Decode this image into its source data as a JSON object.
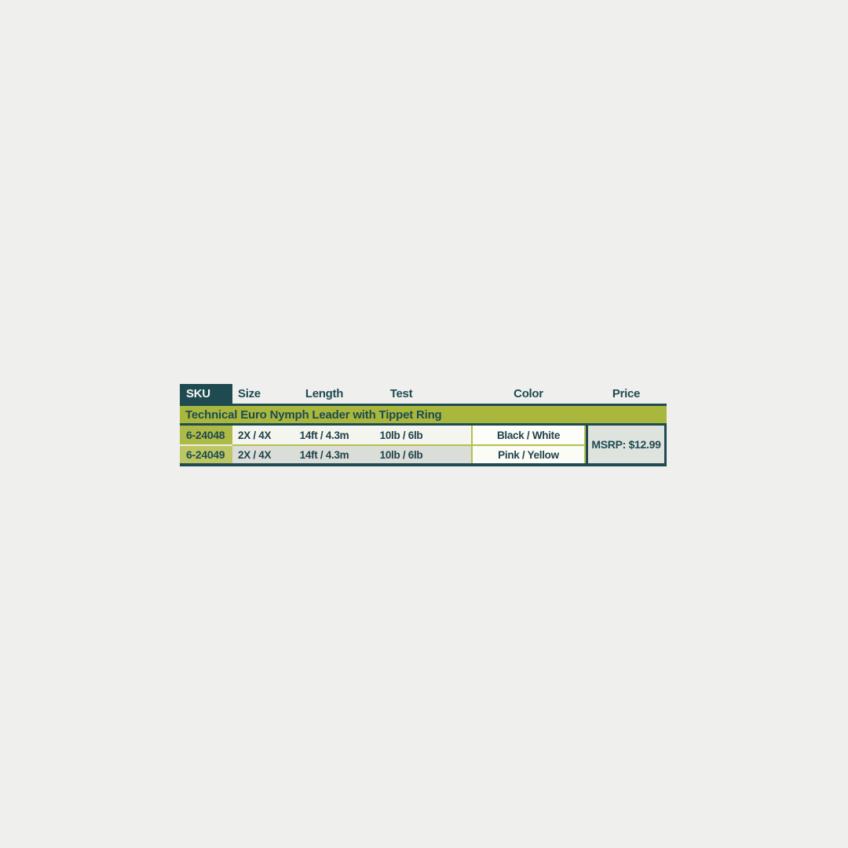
{
  "palette": {
    "page_bg": "#eff0ed",
    "teal": "#1f4a52",
    "banner_green": "#a9b83c",
    "sku_green_1": "#aeba46",
    "sku_green_2": "#bcc663",
    "row1_bg": "#f4f5ef",
    "row2_bg": "#dbded8",
    "color_col_bg_1": "#fdfdf9",
    "color_col_bg_2": "#fbfcf5",
    "price_bg": "#dfe3de",
    "line_green": "#b5c04c",
    "sep_cream": "#eef0de",
    "header_text_light": "#f5f7f3",
    "value_text": "#22424b"
  },
  "table": {
    "columns": [
      {
        "key": "sku",
        "label": "SKU"
      },
      {
        "key": "size",
        "label": "Size"
      },
      {
        "key": "length",
        "label": "Length"
      },
      {
        "key": "test",
        "label": "Test"
      },
      {
        "key": "color",
        "label": "Color"
      },
      {
        "key": "price",
        "label": "Price"
      }
    ],
    "banner": "Technical Euro Nymph Leader with Tippet Ring",
    "rows": [
      {
        "sku": "6-24048",
        "size": "2X / 4X",
        "length": "14ft / 4.3m",
        "test": "10lb / 6lb",
        "color": "Black / White"
      },
      {
        "sku": "6-24049",
        "size": "2X / 4X",
        "length": "14ft / 4.3m",
        "test": "10lb / 6lb",
        "color": "Pink / Yellow"
      }
    ],
    "price_msrp": "MSRP: $12.99"
  }
}
